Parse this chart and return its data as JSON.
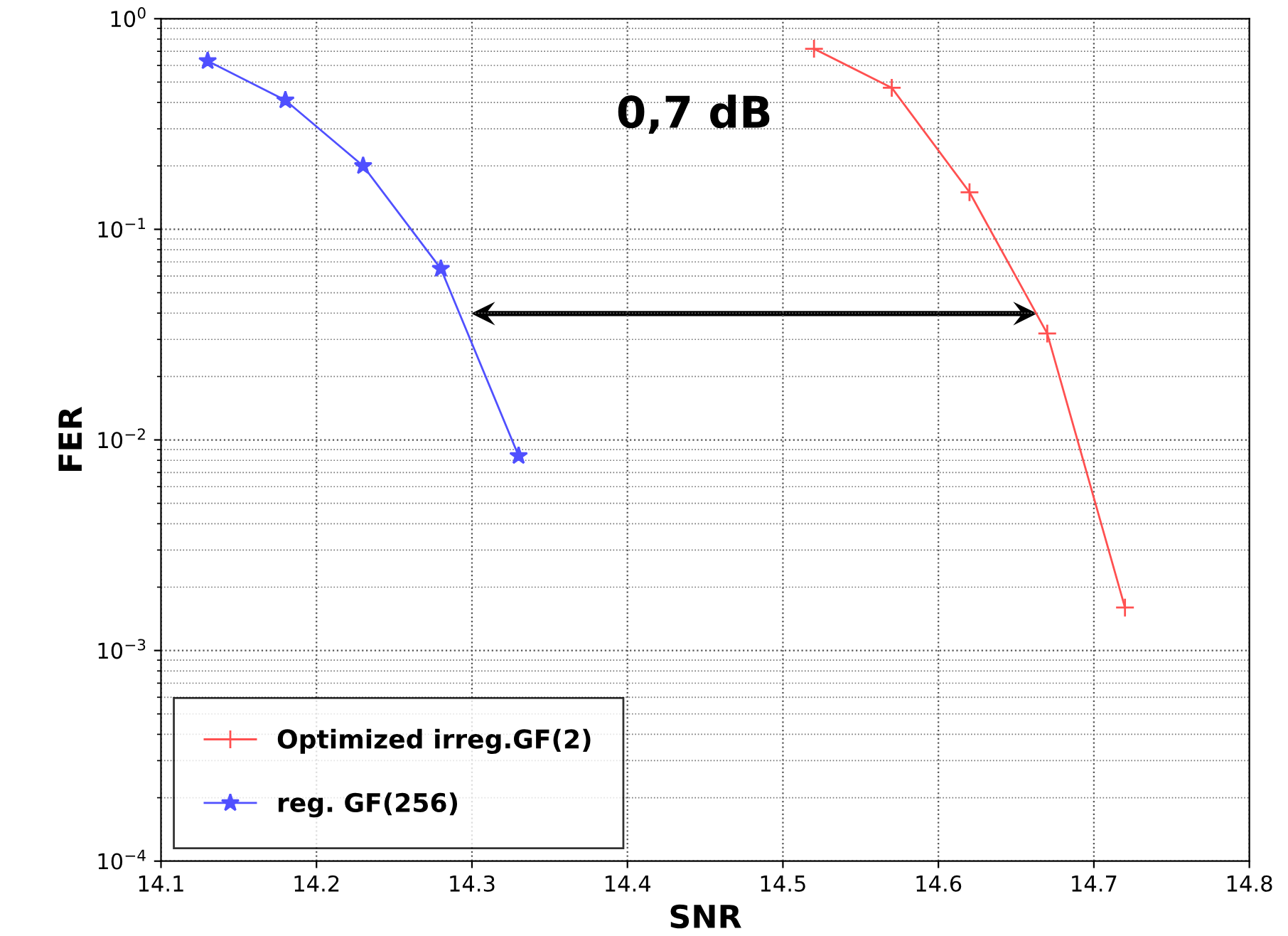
{
  "chart_data": {
    "type": "line",
    "xlabel": "SNR",
    "ylabel": "FER",
    "log": "y",
    "grid": true,
    "legend": "bottom left",
    "xlim": [
      14.1,
      14.8
    ],
    "xticks": [
      14.1,
      14.2,
      14.3,
      14.4,
      14.5,
      14.6,
      14.7,
      14.8
    ],
    "ylim": [
      0.0001,
      1
    ],
    "yticks": [
      {
        "value": 0.0001,
        "label": "10$^{−4}$"
      },
      {
        "value": 0.001,
        "label": "10$^{−3}$"
      },
      {
        "value": 0.01,
        "label": "10$^{−2}$"
      },
      {
        "value": 0.1,
        "label": "10$^{−1}$"
      },
      {
        "value": 1,
        "label": "10$^{0}$"
      }
    ],
    "annotations": [
      "0,7 dB"
    ],
    "series": [
      {
        "name": "Optimized irreg.GF(2)",
        "color": "#ff5050",
        "marker": "cross",
        "x": [
          14.52,
          14.57,
          14.62,
          14.67,
          14.72
        ],
        "values": [
          0.72,
          0.47,
          0.15,
          0.032,
          0.0016
        ]
      },
      {
        "name": "reg. GF(256)",
        "color": "#5050ff",
        "marker": "star",
        "x": [
          14.13,
          14.18,
          14.23,
          14.28,
          14.33
        ],
        "values": [
          0.63,
          0.41,
          0.2,
          0.065,
          0.0084
        ]
      }
    ]
  }
}
